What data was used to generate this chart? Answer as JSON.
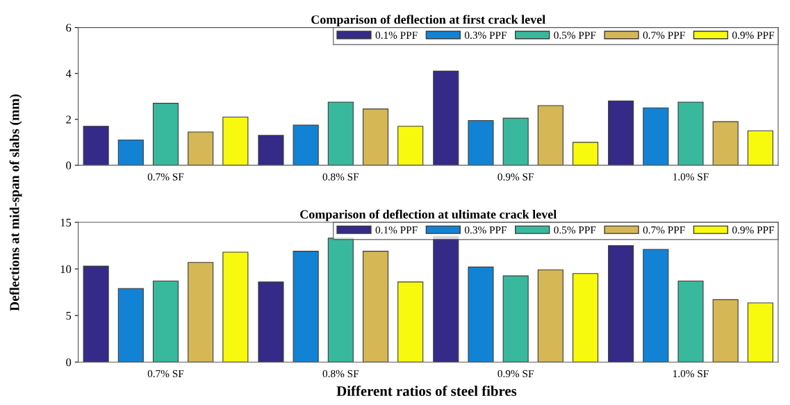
{
  "chart_data": [
    {
      "type": "bar",
      "title": "Comparison of deflection at first crack level",
      "ylabel": "Deflections at mid-span of slabs (mm)",
      "categories": [
        "0.7% SF",
        "0.8% SF",
        "0.9% SF",
        "1.0% SF"
      ],
      "ylim": [
        0,
        6
      ],
      "yticks": [
        0,
        2,
        4,
        6
      ],
      "legend": "top right",
      "series": [
        {
          "name": "0.1% PPF",
          "color": "#352a87",
          "values": [
            1.7,
            1.3,
            4.1,
            2.8
          ]
        },
        {
          "name": "0.3% PPF",
          "color": "#1283d4",
          "values": [
            1.1,
            1.75,
            1.95,
            2.5
          ]
        },
        {
          "name": "0.5% PPF",
          "color": "#38b99e",
          "values": [
            2.7,
            2.75,
            2.05,
            2.75
          ]
        },
        {
          "name": "0.7% PPF",
          "color": "#d5b755",
          "values": [
            1.45,
            2.45,
            2.6,
            1.9
          ]
        },
        {
          "name": "0.9% PPF",
          "color": "#f8fa0d",
          "values": [
            2.1,
            1.7,
            1.0,
            1.5
          ]
        }
      ]
    },
    {
      "type": "bar",
      "title": "Comparison of deflection at ultimate crack level",
      "xlabel": "Different ratios of steel fibres",
      "categories": [
        "0.7% SF",
        "0.8% SF",
        "0.9% SF",
        "1.0% SF"
      ],
      "ylim": [
        0,
        15
      ],
      "yticks": [
        0,
        5,
        10,
        15
      ],
      "legend": "top right",
      "series": [
        {
          "name": "0.1% PPF",
          "color": "#352a87",
          "values": [
            10.3,
            8.6,
            13.5,
            12.5
          ]
        },
        {
          "name": "0.3% PPF",
          "color": "#1283d4",
          "values": [
            7.9,
            11.9,
            10.2,
            12.1
          ]
        },
        {
          "name": "0.5% PPF",
          "color": "#38b99e",
          "values": [
            8.7,
            13.3,
            9.25,
            8.7
          ]
        },
        {
          "name": "0.7% PPF",
          "color": "#d5b755",
          "values": [
            10.7,
            11.9,
            9.9,
            6.7
          ]
        },
        {
          "name": "0.9% PPF",
          "color": "#f8fa0d",
          "values": [
            11.8,
            8.6,
            9.5,
            6.35
          ]
        }
      ]
    }
  ]
}
